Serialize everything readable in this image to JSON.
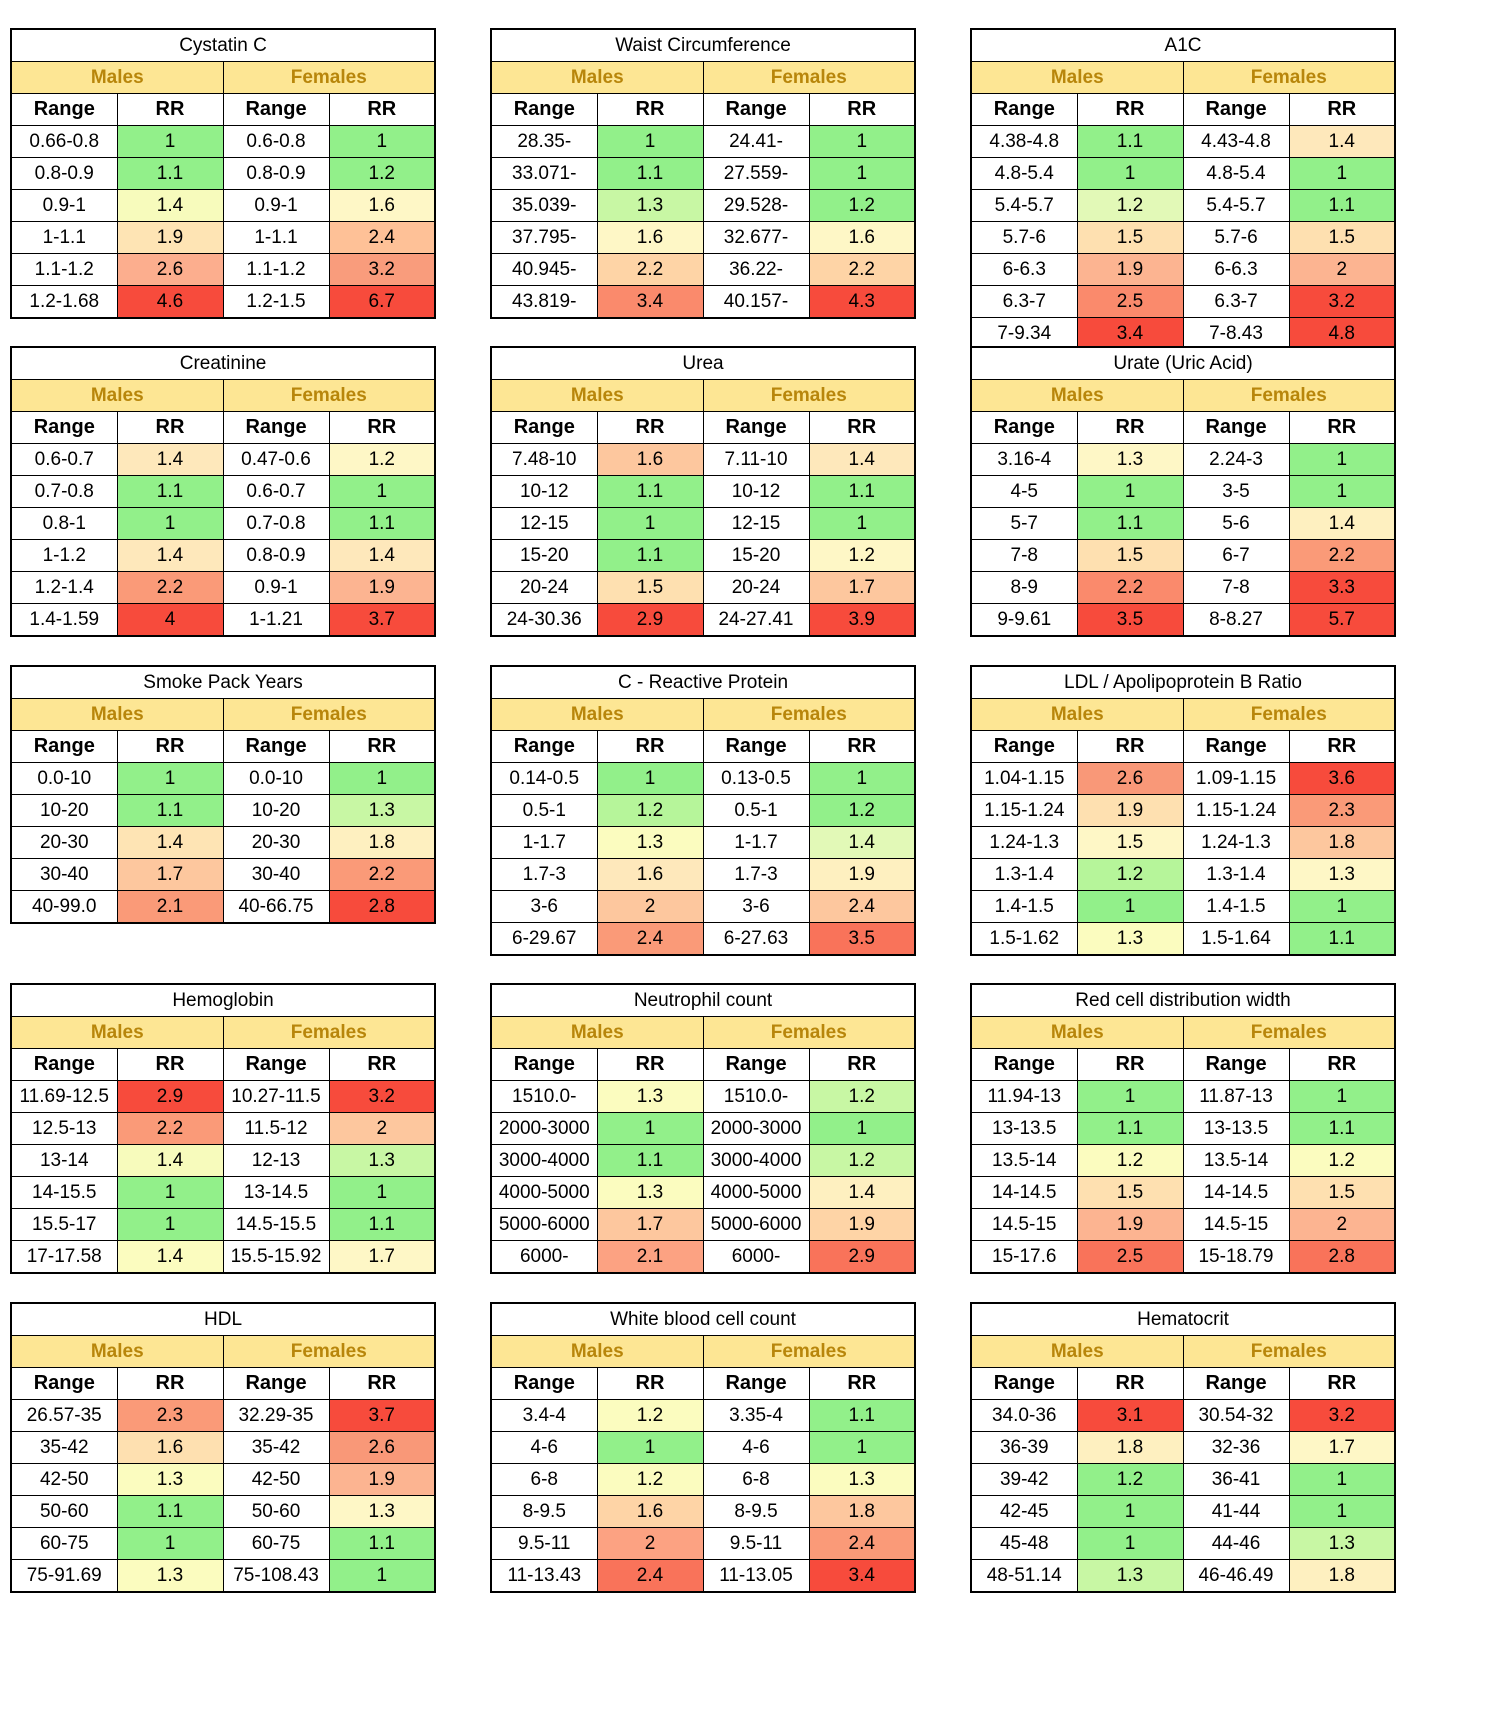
{
  "labels": {
    "males": "Males",
    "females": "Females",
    "range": "Range",
    "rr": "RR"
  },
  "tables": [
    {
      "title": "Cystatin C",
      "rows": [
        [
          "0.66-0.8",
          "1",
          "0.6-0.8",
          "1"
        ],
        [
          "0.8-0.9",
          "1.1",
          "0.8-0.9",
          "1.2"
        ],
        [
          "0.9-1",
          "1.4",
          "0.9-1",
          "1.6"
        ],
        [
          "1-1.1",
          "1.9",
          "1-1.1",
          "2.4"
        ],
        [
          "1.1-1.2",
          "2.6",
          "1.1-1.2",
          "3.2"
        ],
        [
          "1.2-1.68",
          "4.6",
          "1.2-1.5",
          "6.7"
        ]
      ],
      "colors": [
        [
          "#92f08a",
          "#92f08a"
        ],
        [
          "#92f08a",
          "#92f08a"
        ],
        [
          "#f7fbbc",
          "#fef7c6"
        ],
        [
          "#fee4b4",
          "#fec197"
        ],
        [
          "#fcae8e",
          "#f99c7c"
        ],
        [
          "#f74b3c",
          "#f74b3c"
        ]
      ]
    },
    {
      "title": "Waist Circumference",
      "rows": [
        [
          "28.35-",
          "1",
          "24.41-",
          "1"
        ],
        [
          "33.071-",
          "1.1",
          "27.559-",
          "1"
        ],
        [
          "35.039-",
          "1.3",
          "29.528-",
          "1.2"
        ],
        [
          "37.795-",
          "1.6",
          "32.677-",
          "1.6"
        ],
        [
          "40.945-",
          "2.2",
          "36.22-",
          "2.2"
        ],
        [
          "43.819-",
          "3.4",
          "40.157-",
          "4.3"
        ]
      ],
      "colors": [
        [
          "#92f08a",
          "#92f08a"
        ],
        [
          "#92f08a",
          "#92f08a"
        ],
        [
          "#c8f7a4",
          "#92f08a"
        ],
        [
          "#fef7c6",
          "#fef7c6"
        ],
        [
          "#fed4a6",
          "#fed4a6"
        ],
        [
          "#fa8a6c",
          "#f74b3c"
        ]
      ]
    },
    {
      "title": "A1C",
      "rows": [
        [
          "4.38-4.8",
          "1.1",
          "4.43-4.8",
          "1.4"
        ],
        [
          "4.8-5.4",
          "1",
          "4.8-5.4",
          "1"
        ],
        [
          "5.4-5.7",
          "1.2",
          "5.4-5.7",
          "1.1"
        ],
        [
          "5.7-6",
          "1.5",
          "5.7-6",
          "1.5"
        ],
        [
          "6-6.3",
          "1.9",
          "6-6.3",
          "2"
        ],
        [
          "6.3-7",
          "2.5",
          "6.3-7",
          "3.2"
        ],
        [
          "7-9.34",
          "3.4",
          "7-8.43",
          "4.8"
        ]
      ],
      "colors": [
        [
          "#92f08a",
          "#fee8bb"
        ],
        [
          "#92f08a",
          "#92f08a"
        ],
        [
          "#e2f9b7",
          "#92f08a"
        ],
        [
          "#fee0b0",
          "#fee0b0"
        ],
        [
          "#fcb491",
          "#fcb491"
        ],
        [
          "#fa8a6c",
          "#f74b3c"
        ],
        [
          "#f74b3c",
          "#f74b3c"
        ]
      ]
    },
    {
      "title": "Creatinine",
      "rows": [
        [
          "0.6-0.7",
          "1.4",
          "0.47-0.6",
          "1.2"
        ],
        [
          "0.7-0.8",
          "1.1",
          "0.6-0.7",
          "1"
        ],
        [
          "0.8-1",
          "1",
          "0.7-0.8",
          "1.1"
        ],
        [
          "1-1.2",
          "1.4",
          "0.8-0.9",
          "1.4"
        ],
        [
          "1.2-1.4",
          "2.2",
          "0.9-1",
          "1.9"
        ],
        [
          "1.4-1.59",
          "4",
          "1-1.21",
          "3.7"
        ]
      ],
      "colors": [
        [
          "#fee8bb",
          "#fef7c6"
        ],
        [
          "#92f08a",
          "#92f08a"
        ],
        [
          "#92f08a",
          "#92f08a"
        ],
        [
          "#fee8bb",
          "#fee8bb"
        ],
        [
          "#fa9a78",
          "#fcb491"
        ],
        [
          "#f74b3c",
          "#f74b3c"
        ]
      ]
    },
    {
      "title": "Urea",
      "rows": [
        [
          "7.48-10",
          "1.6",
          "7.11-10",
          "1.4"
        ],
        [
          "10-12",
          "1.1",
          "10-12",
          "1.1"
        ],
        [
          "12-15",
          "1",
          "12-15",
          "1"
        ],
        [
          "15-20",
          "1.1",
          "15-20",
          "1.2"
        ],
        [
          "20-24",
          "1.5",
          "20-24",
          "1.7"
        ],
        [
          "24-30.36",
          "2.9",
          "24-27.41",
          "3.9"
        ]
      ],
      "colors": [
        [
          "#fdc79e",
          "#fee8bb"
        ],
        [
          "#92f08a",
          "#92f08a"
        ],
        [
          "#92f08a",
          "#92f08a"
        ],
        [
          "#92f08a",
          "#fef7c6"
        ],
        [
          "#fee0b0",
          "#fdc79e"
        ],
        [
          "#f74b3c",
          "#f74b3c"
        ]
      ]
    },
    {
      "title": "Urate (Uric Acid)",
      "rows": [
        [
          "3.16-4",
          "1.3",
          "2.24-3",
          "1"
        ],
        [
          "4-5",
          "1",
          "3-5",
          "1"
        ],
        [
          "5-7",
          "1.1",
          "5-6",
          "1.4"
        ],
        [
          "7-8",
          "1.5",
          "6-7",
          "2.2"
        ],
        [
          "8-9",
          "2.2",
          "7-8",
          "3.3"
        ],
        [
          "9-9.61",
          "3.5",
          "8-8.27",
          "5.7"
        ]
      ],
      "colors": [
        [
          "#fef7c6",
          "#92f08a"
        ],
        [
          "#92f08a",
          "#92f08a"
        ],
        [
          "#92f08a",
          "#fef0c0"
        ],
        [
          "#fee0b0",
          "#fa9a78"
        ],
        [
          "#fa8a6c",
          "#f74b3c"
        ],
        [
          "#f74b3c",
          "#f74b3c"
        ]
      ]
    },
    {
      "title": "Smoke Pack Years",
      "rows": [
        [
          "0.0-10",
          "1",
          "0.0-10",
          "1"
        ],
        [
          "10-20",
          "1.1",
          "10-20",
          "1.3"
        ],
        [
          "20-30",
          "1.4",
          "20-30",
          "1.8"
        ],
        [
          "30-40",
          "1.7",
          "30-40",
          "2.2"
        ],
        [
          "40-99.0",
          "2.1",
          "40-66.75",
          "2.8"
        ]
      ],
      "colors": [
        [
          "#92f08a",
          "#92f08a"
        ],
        [
          "#92f08a",
          "#c8f7a4"
        ],
        [
          "#fee4b4",
          "#fef0c0"
        ],
        [
          "#fdc79e",
          "#fa9a78"
        ],
        [
          "#fa9a78",
          "#f74b3c"
        ]
      ]
    },
    {
      "title": "C - Reactive Protein",
      "rows": [
        [
          "0.14-0.5",
          "1",
          "0.13-0.5",
          "1"
        ],
        [
          "0.5-1",
          "1.2",
          "0.5-1",
          "1.2"
        ],
        [
          "1-1.7",
          "1.3",
          "1-1.7",
          "1.4"
        ],
        [
          "1.7-3",
          "1.6",
          "1.7-3",
          "1.9"
        ],
        [
          "3-6",
          "2",
          "3-6",
          "2.4"
        ],
        [
          "6-29.67",
          "2.4",
          "6-27.63",
          "3.5"
        ]
      ],
      "colors": [
        [
          "#92f08a",
          "#92f08a"
        ],
        [
          "#b6f59a",
          "#92f08a"
        ],
        [
          "#fbfcbf",
          "#e2f9b7"
        ],
        [
          "#fee8bb",
          "#fef0c0"
        ],
        [
          "#fdc79e",
          "#fdc79e"
        ],
        [
          "#fa9a78",
          "#f9735a"
        ]
      ]
    },
    {
      "title": "LDL / Apolipoprotein B Ratio",
      "rows": [
        [
          "1.04-1.15",
          "2.6",
          "1.09-1.15",
          "3.6"
        ],
        [
          "1.15-1.24",
          "1.9",
          "1.15-1.24",
          "2.3"
        ],
        [
          "1.24-1.3",
          "1.5",
          "1.24-1.3",
          "1.8"
        ],
        [
          "1.3-1.4",
          "1.2",
          "1.3-1.4",
          "1.3"
        ],
        [
          "1.4-1.5",
          "1",
          "1.4-1.5",
          "1"
        ],
        [
          "1.5-1.62",
          "1.3",
          "1.5-1.64",
          "1.1"
        ]
      ],
      "colors": [
        [
          "#f99878",
          "#f74b3c"
        ],
        [
          "#fee0b0",
          "#fa9a78"
        ],
        [
          "#fef7c6",
          "#fdc79e"
        ],
        [
          "#b6f59a",
          "#fef7c6"
        ],
        [
          "#92f08a",
          "#92f08a"
        ],
        [
          "#fbfcbf",
          "#92f08a"
        ]
      ]
    },
    {
      "title": "Hemoglobin",
      "rows": [
        [
          "11.69-12.5",
          "2.9",
          "10.27-11.5",
          "3.2"
        ],
        [
          "12.5-13",
          "2.2",
          "11.5-12",
          "2"
        ],
        [
          "13-14",
          "1.4",
          "12-13",
          "1.3"
        ],
        [
          "14-15.5",
          "1",
          "13-14.5",
          "1"
        ],
        [
          "15.5-17",
          "1",
          "14.5-15.5",
          "1.1"
        ],
        [
          "17-17.58",
          "1.4",
          "15.5-15.92",
          "1.7"
        ]
      ],
      "colors": [
        [
          "#f74b3c",
          "#f74b3c"
        ],
        [
          "#fa9a78",
          "#fdc79e"
        ],
        [
          "#f7fbbc",
          "#c8f7a4"
        ],
        [
          "#92f08a",
          "#92f08a"
        ],
        [
          "#92f08a",
          "#92f08a"
        ],
        [
          "#fbfcbf",
          "#fef7c6"
        ]
      ]
    },
    {
      "title": "Neutrophil count",
      "rows": [
        [
          "1510.0-",
          "1.3",
          "1510.0-",
          "1.2"
        ],
        [
          "2000-3000",
          "1",
          "2000-3000",
          "1"
        ],
        [
          "3000-4000",
          "1.1",
          "3000-4000",
          "1.2"
        ],
        [
          "4000-5000",
          "1.3",
          "4000-5000",
          "1.4"
        ],
        [
          "5000-6000",
          "1.7",
          "5000-6000",
          "1.9"
        ],
        [
          "6000-",
          "2.1",
          "6000-",
          "2.9"
        ]
      ],
      "colors": [
        [
          "#fbfcbf",
          "#c8f7a4"
        ],
        [
          "#92f08a",
          "#92f08a"
        ],
        [
          "#92f08a",
          "#c8f7a4"
        ],
        [
          "#fbfcbf",
          "#fef0c0"
        ],
        [
          "#fdc79e",
          "#fed4a6"
        ],
        [
          "#fca282",
          "#f9735a"
        ]
      ]
    },
    {
      "title": "Red cell distribution width",
      "rows": [
        [
          "11.94-13",
          "1",
          "11.87-13",
          "1"
        ],
        [
          "13-13.5",
          "1.1",
          "13-13.5",
          "1.1"
        ],
        [
          "13.5-14",
          "1.2",
          "13.5-14",
          "1.2"
        ],
        [
          "14-14.5",
          "1.5",
          "14-14.5",
          "1.5"
        ],
        [
          "14.5-15",
          "1.9",
          "14.5-15",
          "2"
        ],
        [
          "15-17.6",
          "2.5",
          "15-18.79",
          "2.8"
        ]
      ],
      "colors": [
        [
          "#92f08a",
          "#92f08a"
        ],
        [
          "#92f08a",
          "#92f08a"
        ],
        [
          "#fbfcbf",
          "#fbfcbf"
        ],
        [
          "#fee0b0",
          "#fee0b0"
        ],
        [
          "#fcb491",
          "#fcb491"
        ],
        [
          "#f9735a",
          "#f9735a"
        ]
      ]
    },
    {
      "title": "HDL",
      "rows": [
        [
          "26.57-35",
          "2.3",
          "32.29-35",
          "3.7"
        ],
        [
          "35-42",
          "1.6",
          "35-42",
          "2.6"
        ],
        [
          "42-50",
          "1.3",
          "42-50",
          "1.9"
        ],
        [
          "50-60",
          "1.1",
          "50-60",
          "1.3"
        ],
        [
          "60-75",
          "1",
          "60-75",
          "1.1"
        ],
        [
          "75-91.69",
          "1.3",
          "75-108.43",
          "1"
        ]
      ],
      "colors": [
        [
          "#fa9a78",
          "#f74b3c"
        ],
        [
          "#fee0b0",
          "#f99878"
        ],
        [
          "#fbfcbf",
          "#fcb491"
        ],
        [
          "#92f08a",
          "#fef7c6"
        ],
        [
          "#92f08a",
          "#92f08a"
        ],
        [
          "#fbfcbf",
          "#92f08a"
        ]
      ]
    },
    {
      "title": "White blood cell count",
      "rows": [
        [
          "3.4-4",
          "1.2",
          "3.35-4",
          "1.1"
        ],
        [
          "4-6",
          "1",
          "4-6",
          "1"
        ],
        [
          "6-8",
          "1.2",
          "6-8",
          "1.3"
        ],
        [
          "8-9.5",
          "1.6",
          "8-9.5",
          "1.8"
        ],
        [
          "9.5-11",
          "2",
          "9.5-11",
          "2.4"
        ],
        [
          "11-13.43",
          "2.4",
          "11-13.05",
          "3.4"
        ]
      ],
      "colors": [
        [
          "#fbfcbf",
          "#92f08a"
        ],
        [
          "#92f08a",
          "#92f08a"
        ],
        [
          "#fbfcbf",
          "#fbfcbf"
        ],
        [
          "#fed4a6",
          "#fdc79e"
        ],
        [
          "#fca282",
          "#fa9a78"
        ],
        [
          "#f9735a",
          "#f74b3c"
        ]
      ]
    },
    {
      "title": "Hematocrit",
      "rows": [
        [
          "34.0-36",
          "3.1",
          "30.54-32",
          "3.2"
        ],
        [
          "36-39",
          "1.8",
          "32-36",
          "1.7"
        ],
        [
          "39-42",
          "1.2",
          "36-41",
          "1"
        ],
        [
          "42-45",
          "1",
          "41-44",
          "1"
        ],
        [
          "45-48",
          "1",
          "44-46",
          "1.3"
        ],
        [
          "48-51.14",
          "1.3",
          "46-46.49",
          "1.8"
        ]
      ],
      "colors": [
        [
          "#f74b3c",
          "#f74b3c"
        ],
        [
          "#fef0c0",
          "#fef7c6"
        ],
        [
          "#92f08a",
          "#92f08a"
        ],
        [
          "#92f08a",
          "#92f08a"
        ],
        [
          "#92f08a",
          "#c8f7a4"
        ],
        [
          "#c8f7a4",
          "#fef0c0"
        ]
      ]
    }
  ]
}
